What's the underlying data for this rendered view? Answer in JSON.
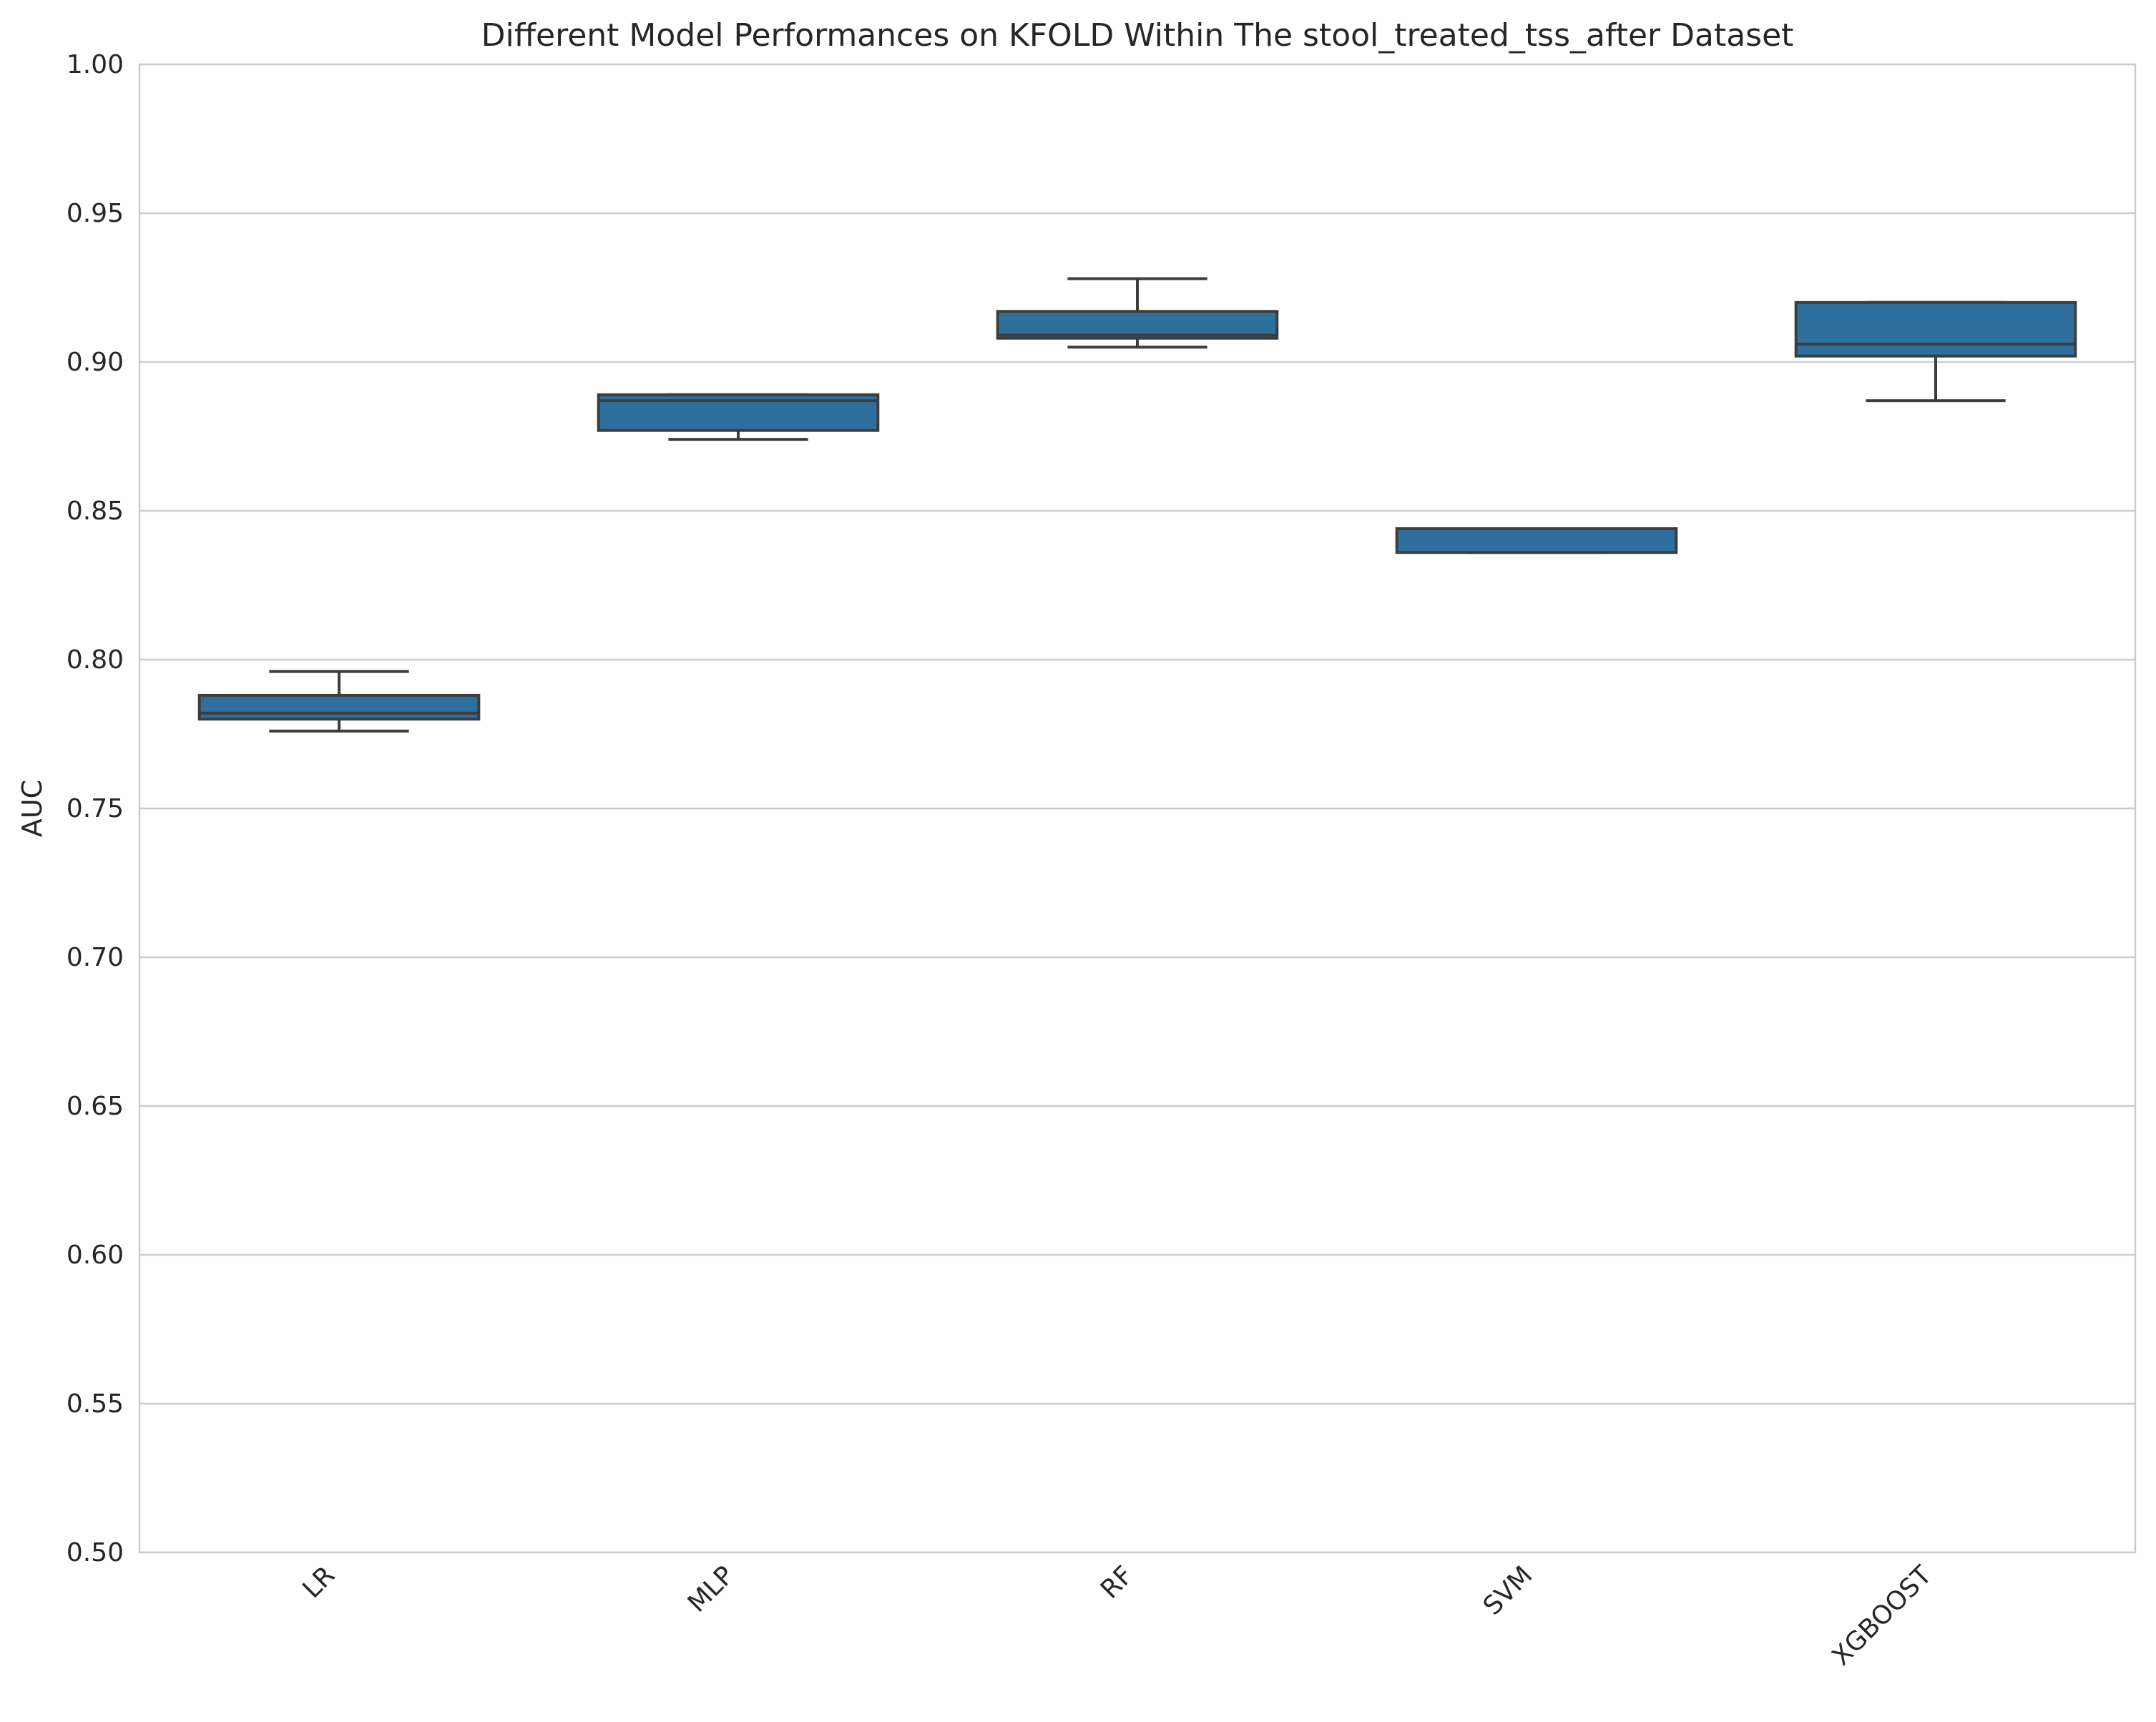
{
  "chart_data": {
    "type": "box",
    "title": "Different Model Performances on KFOLD Within The stool_treated_tss_after Dataset",
    "xlabel": "",
    "ylabel": "AUC",
    "ylim": [
      0.5,
      1.0
    ],
    "yticks": [
      "0.50",
      "0.55",
      "0.60",
      "0.65",
      "0.70",
      "0.75",
      "0.80",
      "0.85",
      "0.90",
      "0.95",
      "1.00"
    ],
    "grid": true,
    "box_color": "#2e6f9e",
    "categories": [
      "LR",
      "MLP",
      "RF",
      "SVM",
      "XGBOOST"
    ],
    "boxes": [
      {
        "label": "LR",
        "min": 0.776,
        "q1": 0.78,
        "median": 0.782,
        "q3": 0.788,
        "max": 0.796
      },
      {
        "label": "MLP",
        "min": 0.874,
        "q1": 0.877,
        "median": 0.887,
        "q3": 0.889,
        "max": 0.889
      },
      {
        "label": "RF",
        "min": 0.905,
        "q1": 0.908,
        "median": 0.909,
        "q3": 0.917,
        "max": 0.928
      },
      {
        "label": "SVM",
        "min": 0.836,
        "q1": 0.836,
        "median": 0.844,
        "q3": 0.844,
        "max": 0.844
      },
      {
        "label": "XGBOOST",
        "min": 0.887,
        "q1": 0.902,
        "median": 0.906,
        "q3": 0.92,
        "max": 0.92
      }
    ]
  }
}
